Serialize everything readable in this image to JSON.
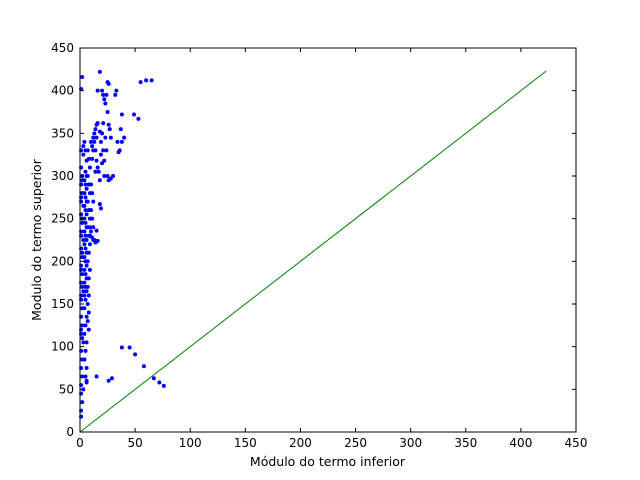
{
  "chart_data": {
    "type": "scatter",
    "xlabel": "Módulo do termo inferior",
    "ylabel": "Modulo do termo superior",
    "xlim": [
      0,
      450
    ],
    "ylim": [
      0,
      450
    ],
    "xticks": [
      0,
      50,
      100,
      150,
      200,
      250,
      300,
      350,
      400,
      450
    ],
    "yticks": [
      0,
      50,
      100,
      150,
      200,
      250,
      300,
      350,
      400,
      450
    ],
    "grid": false,
    "legend": "none",
    "colors": {
      "scatter": "#0000ff",
      "line": "#008000"
    },
    "series": [
      {
        "kind": "scatter",
        "points": [
          [
            1,
            402
          ],
          [
            2,
            416
          ],
          [
            1,
            330
          ],
          [
            3,
            335
          ],
          [
            2,
            300
          ],
          [
            1,
            290
          ],
          [
            2,
            280
          ],
          [
            1,
            270
          ],
          [
            3,
            265
          ],
          [
            1,
            255
          ],
          [
            2,
            245
          ],
          [
            1,
            235
          ],
          [
            3,
            225
          ],
          [
            1,
            215
          ],
          [
            2,
            205
          ],
          [
            1,
            195
          ],
          [
            2,
            185
          ],
          [
            1,
            175
          ],
          [
            3,
            165
          ],
          [
            1,
            155
          ],
          [
            2,
            145
          ],
          [
            1,
            135
          ],
          [
            2,
            125
          ],
          [
            1,
            115
          ],
          [
            3,
            105
          ],
          [
            1,
            95
          ],
          [
            2,
            85
          ],
          [
            1,
            75
          ],
          [
            2,
            65
          ],
          [
            1,
            55
          ],
          [
            1,
            45
          ],
          [
            2,
            35
          ],
          [
            1,
            25
          ],
          [
            1,
            18
          ],
          [
            3,
            50
          ],
          [
            1,
            120
          ],
          [
            2,
            110
          ],
          [
            1,
            160
          ],
          [
            2,
            170
          ],
          [
            1,
            190
          ],
          [
            2,
            210
          ],
          [
            1,
            230
          ],
          [
            2,
            250
          ],
          [
            1,
            275
          ],
          [
            2,
            295
          ],
          [
            1,
            310
          ],
          [
            3,
            325
          ],
          [
            4,
            340
          ],
          [
            5,
            330
          ],
          [
            6,
            318
          ],
          [
            5,
            305
          ],
          [
            4,
            295
          ],
          [
            6,
            285
          ],
          [
            5,
            275
          ],
          [
            4,
            265
          ],
          [
            6,
            255
          ],
          [
            5,
            245
          ],
          [
            4,
            235
          ],
          [
            6,
            225
          ],
          [
            5,
            215
          ],
          [
            4,
            205
          ],
          [
            6,
            195
          ],
          [
            5,
            185
          ],
          [
            4,
            175
          ],
          [
            6,
            165
          ],
          [
            5,
            155
          ],
          [
            4,
            145
          ],
          [
            6,
            135
          ],
          [
            5,
            125
          ],
          [
            4,
            115
          ],
          [
            6,
            105
          ],
          [
            5,
            95
          ],
          [
            4,
            85
          ],
          [
            6,
            75
          ],
          [
            5,
            65
          ],
          [
            6,
            60
          ],
          [
            4,
            160
          ],
          [
            5,
            170
          ],
          [
            6,
            180
          ],
          [
            4,
            190
          ],
          [
            5,
            200
          ],
          [
            6,
            210
          ],
          [
            4,
            220
          ],
          [
            5,
            230
          ],
          [
            6,
            240
          ],
          [
            4,
            250
          ],
          [
            5,
            260
          ],
          [
            6,
            270
          ],
          [
            4,
            280
          ],
          [
            5,
            290
          ],
          [
            6,
            300
          ],
          [
            7,
            330
          ],
          [
            8,
            320
          ],
          [
            9,
            310
          ],
          [
            7,
            300
          ],
          [
            8,
            290
          ],
          [
            9,
            280
          ],
          [
            7,
            270
          ],
          [
            8,
            260
          ],
          [
            9,
            250
          ],
          [
            7,
            240
          ],
          [
            8,
            230
          ],
          [
            9,
            220
          ],
          [
            8,
            210
          ],
          [
            7,
            200
          ],
          [
            9,
            190
          ],
          [
            8,
            180
          ],
          [
            7,
            170
          ],
          [
            8,
            160
          ],
          [
            7,
            150
          ],
          [
            8,
            140
          ],
          [
            7,
            130
          ],
          [
            8,
            120
          ],
          [
            9,
            240
          ],
          [
            9,
            260
          ],
          [
            9,
            230
          ],
          [
            10,
            340
          ],
          [
            11,
            335
          ],
          [
            12,
            345
          ],
          [
            13,
            350
          ],
          [
            14,
            355
          ],
          [
            15,
            360
          ],
          [
            16,
            362
          ],
          [
            13,
            340
          ],
          [
            12,
            330
          ],
          [
            11,
            320
          ],
          [
            14,
            330
          ],
          [
            15,
            345
          ],
          [
            10,
            290
          ],
          [
            11,
            280
          ],
          [
            12,
            270
          ],
          [
            10,
            260
          ],
          [
            11,
            250
          ],
          [
            12,
            240
          ],
          [
            10,
            235
          ],
          [
            11,
            228
          ],
          [
            12,
            225
          ],
          [
            13,
            225
          ],
          [
            14,
            222
          ],
          [
            15,
            236
          ],
          [
            16,
            224
          ],
          [
            15,
            318
          ],
          [
            14,
            305
          ],
          [
            16,
            310
          ],
          [
            17,
            305
          ],
          [
            18,
            295
          ],
          [
            19,
            325
          ],
          [
            20,
            315
          ],
          [
            21,
            330
          ],
          [
            22,
            300
          ],
          [
            18,
            352
          ],
          [
            19,
            340
          ],
          [
            20,
            350
          ],
          [
            21,
            362
          ],
          [
            22,
            318
          ],
          [
            23,
            345
          ],
          [
            24,
            330
          ],
          [
            25,
            300
          ],
          [
            24,
            395
          ],
          [
            25,
            410
          ],
          [
            26,
            408
          ],
          [
            23,
            385
          ],
          [
            22,
            390
          ],
          [
            25,
            375
          ],
          [
            21,
            395
          ],
          [
            20,
            400
          ],
          [
            18,
            422
          ],
          [
            16,
            400
          ],
          [
            26,
            360
          ],
          [
            27,
            355
          ],
          [
            28,
            345
          ],
          [
            30,
            300
          ],
          [
            28,
            297
          ],
          [
            26,
            295
          ],
          [
            33,
            400
          ],
          [
            32,
            395
          ],
          [
            34,
            340
          ],
          [
            35,
            328
          ],
          [
            37,
            355
          ],
          [
            38,
            372
          ],
          [
            38,
            340
          ],
          [
            40,
            345
          ],
          [
            36,
            330
          ],
          [
            18,
            267
          ],
          [
            19,
            262
          ],
          [
            15,
            65
          ],
          [
            6,
            58
          ],
          [
            26,
            60
          ],
          [
            29,
            63
          ],
          [
            38,
            99
          ],
          [
            45,
            99
          ],
          [
            50,
            91
          ],
          [
            58,
            77
          ],
          [
            67,
            63
          ],
          [
            72,
            58
          ],
          [
            76,
            54
          ],
          [
            49,
            372
          ],
          [
            53,
            367
          ],
          [
            55,
            410
          ],
          [
            60,
            412
          ],
          [
            65,
            412
          ]
        ]
      },
      {
        "kind": "line",
        "x": [
          0,
          423
        ],
        "y": [
          0,
          423
        ]
      }
    ]
  }
}
